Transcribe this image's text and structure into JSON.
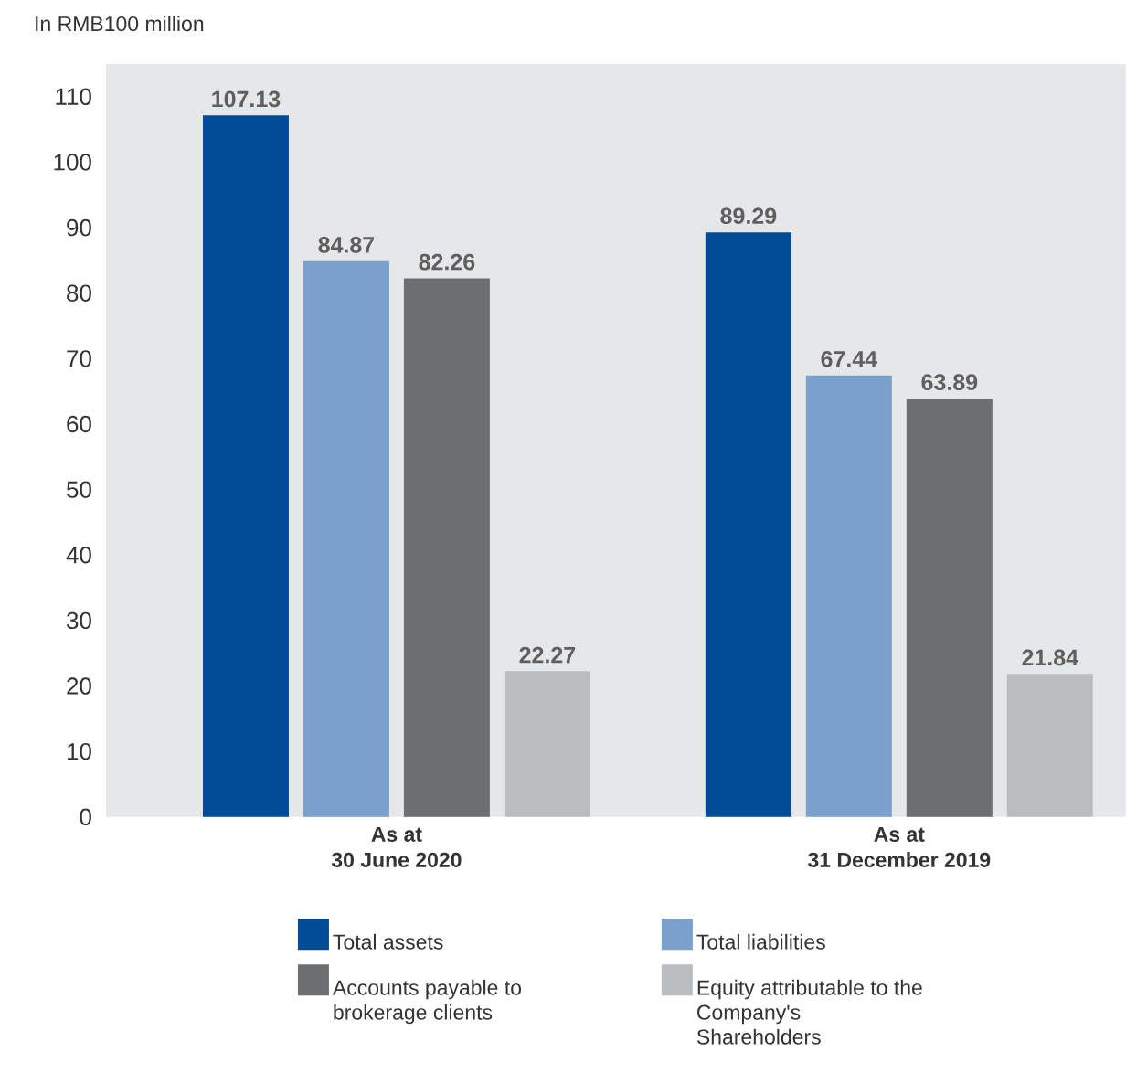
{
  "chart_data": {
    "type": "bar",
    "ylabel": "In RMB100 million",
    "categories": [
      "As at\n30 June 2020",
      "As at\n31 December 2019"
    ],
    "series": [
      {
        "name": "Total assets",
        "color": "#004c97",
        "values": [
          107.13,
          89.29
        ]
      },
      {
        "name": "Total liabilities",
        "color": "#7aa0cc",
        "values": [
          84.87,
          67.44
        ]
      },
      {
        "name": "Accounts payable to brokerage clients",
        "color": "#6d6e71",
        "values": [
          82.26,
          63.89
        ]
      },
      {
        "name": "Equity attributable to the Company's Shareholders",
        "color": "#bbbcbf",
        "values": [
          22.27,
          21.84
        ]
      }
    ],
    "ylim": [
      0,
      115
    ],
    "yticks": [
      0,
      10,
      20,
      30,
      40,
      50,
      60,
      70,
      80,
      90,
      100,
      110
    ],
    "data_labels": true,
    "grid": false,
    "legend": "bottom"
  }
}
